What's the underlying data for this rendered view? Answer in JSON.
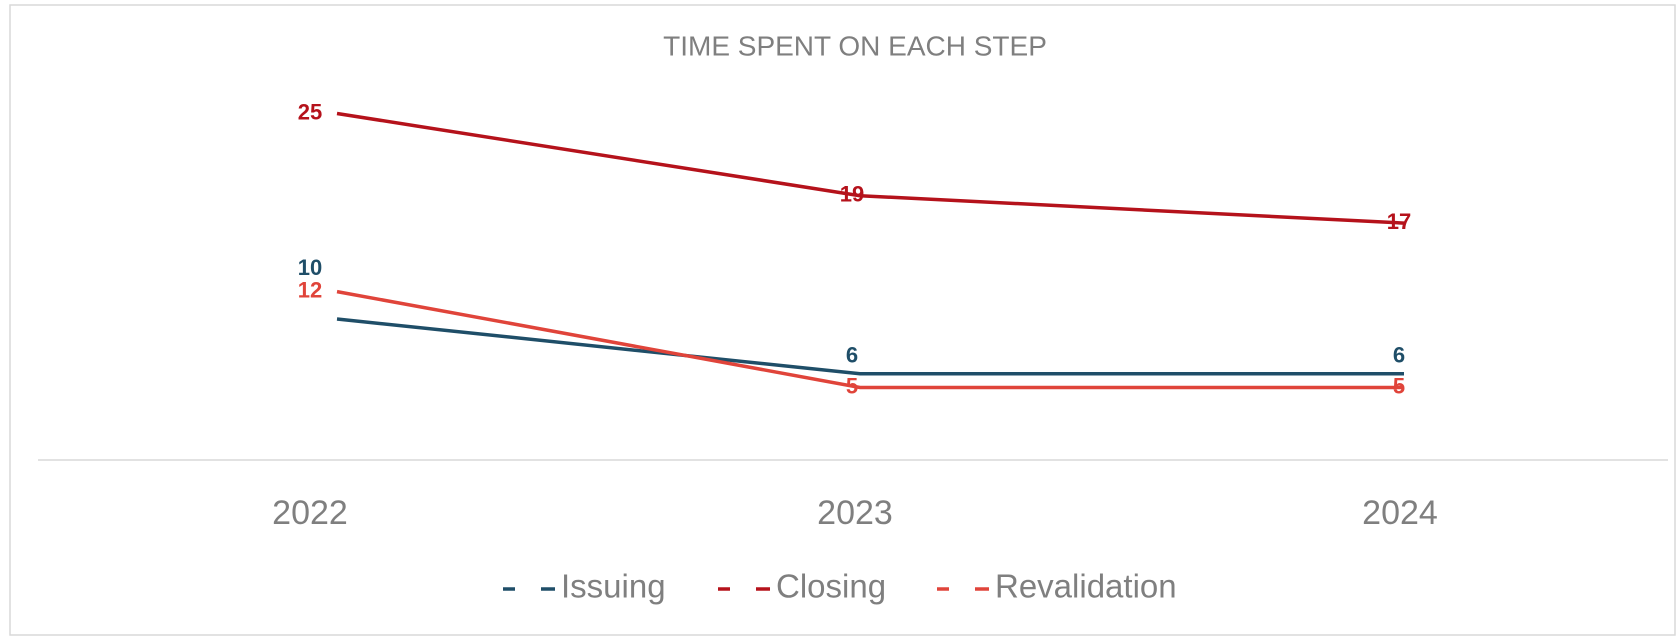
{
  "chart_data": {
    "type": "line",
    "title": "TIME SPENT ON EACH STEP",
    "categories": [
      "2022",
      "2023",
      "2024"
    ],
    "series": [
      {
        "name": "Issuing",
        "color": "#1f4e68",
        "values": [
          10,
          6,
          6
        ]
      },
      {
        "name": "Closing",
        "color": "#b5121b",
        "values": [
          25,
          19,
          17
        ]
      },
      {
        "name": "Revalidation",
        "color": "#e0443a",
        "values": [
          12,
          5,
          5
        ]
      }
    ],
    "ylim": [
      0,
      30
    ],
    "legend": "bottom"
  }
}
